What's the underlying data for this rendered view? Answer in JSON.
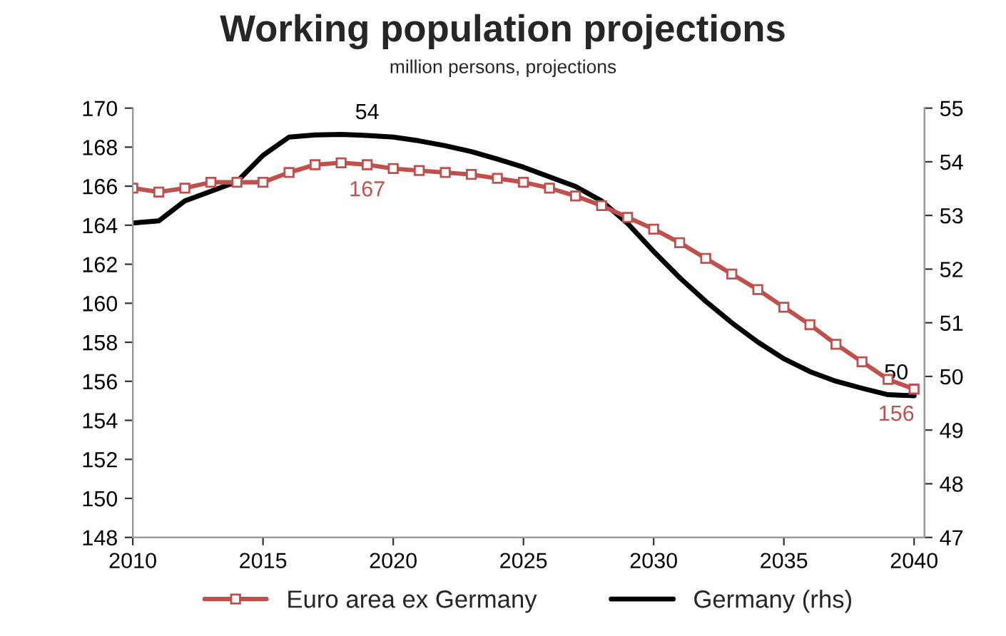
{
  "chart_data": {
    "type": "line",
    "title": "Working population projections",
    "subtitle": "million persons, projections",
    "x": [
      2010,
      2011,
      2012,
      2013,
      2014,
      2015,
      2016,
      2017,
      2018,
      2019,
      2020,
      2021,
      2022,
      2023,
      2024,
      2025,
      2026,
      2027,
      2028,
      2029,
      2030,
      2031,
      2032,
      2033,
      2034,
      2035,
      2036,
      2037,
      2038,
      2039,
      2040
    ],
    "series": [
      {
        "name": "Euro area ex Germany",
        "color": "#c0504d",
        "marker": "square",
        "axis": "y",
        "values": [
          165.9,
          165.7,
          165.9,
          166.2,
          166.2,
          166.2,
          166.7,
          167.1,
          167.2,
          167.1,
          166.9,
          166.8,
          166.7,
          166.6,
          166.4,
          166.2,
          165.9,
          165.5,
          165.0,
          164.4,
          163.8,
          163.1,
          162.3,
          161.5,
          160.7,
          159.8,
          158.9,
          157.9,
          157.0,
          156.1,
          155.6
        ],
        "value_labels": [
          null,
          null,
          null,
          null,
          null,
          null,
          null,
          null,
          null,
          "167",
          null,
          null,
          null,
          null,
          null,
          null,
          null,
          null,
          null,
          null,
          null,
          null,
          null,
          null,
          null,
          null,
          null,
          null,
          null,
          null,
          "156"
        ]
      },
      {
        "name": "Germany (rhs)",
        "color": "#000000",
        "marker": "none",
        "axis": "y2",
        "values": [
          52.86,
          52.9,
          53.27,
          53.45,
          53.63,
          54.12,
          54.46,
          54.5,
          54.51,
          54.49,
          54.46,
          54.39,
          54.3,
          54.19,
          54.05,
          53.9,
          53.72,
          53.54,
          53.27,
          52.85,
          52.33,
          51.84,
          51.4,
          51.0,
          50.64,
          50.33,
          50.09,
          49.91,
          49.78,
          49.66,
          49.64
        ],
        "value_labels": [
          null,
          null,
          null,
          null,
          null,
          null,
          null,
          null,
          null,
          "54",
          null,
          null,
          null,
          null,
          null,
          null,
          null,
          null,
          null,
          null,
          null,
          null,
          null,
          null,
          null,
          null,
          null,
          null,
          null,
          null,
          "50"
        ]
      }
    ],
    "xlim": [
      2010,
      2040.4
    ],
    "xticks": [
      2010,
      2015,
      2020,
      2025,
      2030,
      2035,
      2040
    ],
    "ylim": [
      148,
      170
    ],
    "yticks": [
      148,
      150,
      152,
      154,
      156,
      158,
      160,
      162,
      164,
      166,
      168,
      170
    ],
    "y2lim": [
      47,
      55
    ],
    "y2ticks": [
      47,
      48,
      49,
      50,
      51,
      52,
      53,
      54,
      55
    ],
    "grid": false,
    "legend": "bottom"
  }
}
